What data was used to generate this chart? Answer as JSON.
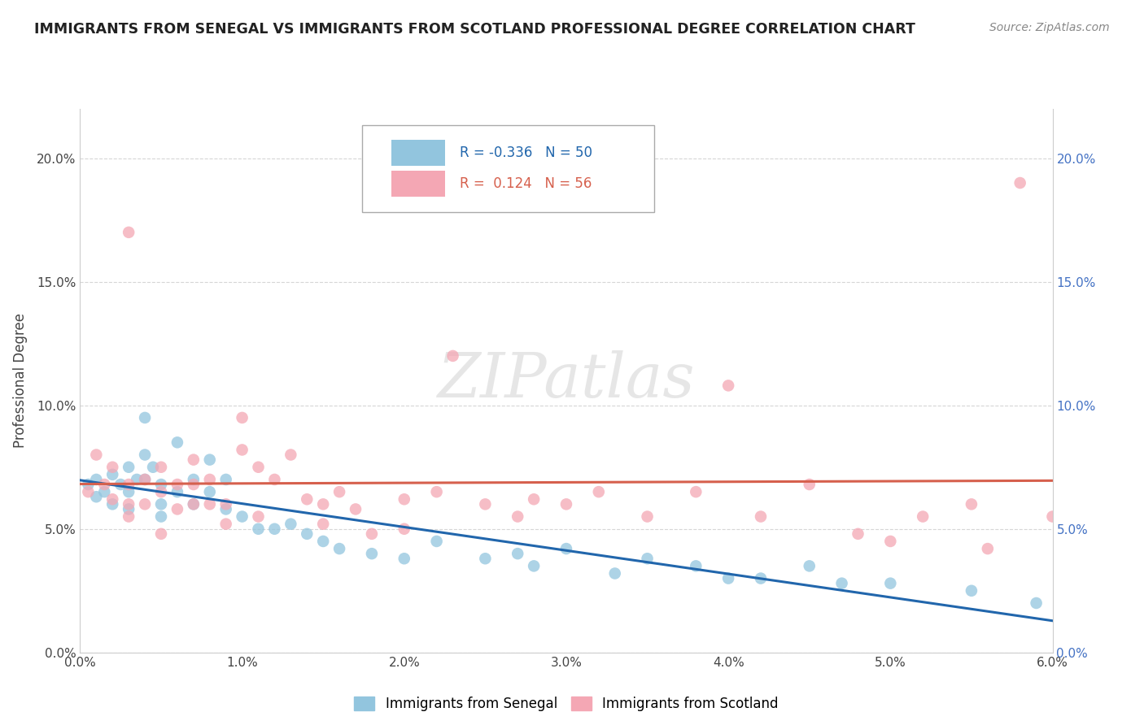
{
  "title": "IMMIGRANTS FROM SENEGAL VS IMMIGRANTS FROM SCOTLAND PROFESSIONAL DEGREE CORRELATION CHART",
  "source": "Source: ZipAtlas.com",
  "ylabel": "Professional Degree",
  "legend_senegal": "Immigrants from Senegal",
  "legend_scotland": "Immigrants from Scotland",
  "r_senegal": "-0.336",
  "n_senegal": "50",
  "r_scotland": "0.124",
  "n_scotland": "56",
  "color_senegal": "#92c5de",
  "color_scotland": "#f4a7b4",
  "line_color_senegal": "#2166ac",
  "line_color_scotland": "#d6604d",
  "xlim": [
    0.0,
    0.06
  ],
  "ylim": [
    0.0,
    0.22
  ],
  "xticks": [
    0.0,
    0.01,
    0.02,
    0.03,
    0.04,
    0.05,
    0.06
  ],
  "yticks": [
    0.0,
    0.05,
    0.1,
    0.15,
    0.2
  ],
  "senegal_x": [
    0.0005,
    0.001,
    0.001,
    0.0015,
    0.002,
    0.002,
    0.0025,
    0.003,
    0.003,
    0.003,
    0.0035,
    0.004,
    0.004,
    0.004,
    0.0045,
    0.005,
    0.005,
    0.005,
    0.006,
    0.006,
    0.007,
    0.007,
    0.008,
    0.008,
    0.009,
    0.009,
    0.01,
    0.011,
    0.012,
    0.013,
    0.014,
    0.015,
    0.016,
    0.018,
    0.02,
    0.022,
    0.025,
    0.027,
    0.028,
    0.03,
    0.033,
    0.035,
    0.038,
    0.04,
    0.042,
    0.045,
    0.047,
    0.05,
    0.055,
    0.059
  ],
  "senegal_y": [
    0.068,
    0.07,
    0.063,
    0.065,
    0.072,
    0.06,
    0.068,
    0.075,
    0.065,
    0.058,
    0.07,
    0.095,
    0.08,
    0.07,
    0.075,
    0.068,
    0.06,
    0.055,
    0.085,
    0.065,
    0.07,
    0.06,
    0.078,
    0.065,
    0.07,
    0.058,
    0.055,
    0.05,
    0.05,
    0.052,
    0.048,
    0.045,
    0.042,
    0.04,
    0.038,
    0.045,
    0.038,
    0.04,
    0.035,
    0.042,
    0.032,
    0.038,
    0.035,
    0.03,
    0.03,
    0.035,
    0.028,
    0.028,
    0.025,
    0.02
  ],
  "scotland_x": [
    0.0005,
    0.001,
    0.0015,
    0.002,
    0.002,
    0.003,
    0.003,
    0.003,
    0.004,
    0.004,
    0.005,
    0.005,
    0.006,
    0.006,
    0.007,
    0.007,
    0.008,
    0.008,
    0.009,
    0.01,
    0.01,
    0.011,
    0.012,
    0.013,
    0.014,
    0.015,
    0.016,
    0.017,
    0.018,
    0.02,
    0.022,
    0.023,
    0.025,
    0.027,
    0.028,
    0.03,
    0.032,
    0.035,
    0.038,
    0.04,
    0.042,
    0.045,
    0.048,
    0.05,
    0.052,
    0.055,
    0.056,
    0.058,
    0.06,
    0.003,
    0.005,
    0.007,
    0.009,
    0.011,
    0.015,
    0.02
  ],
  "scotland_y": [
    0.065,
    0.08,
    0.068,
    0.075,
    0.062,
    0.068,
    0.06,
    0.055,
    0.07,
    0.06,
    0.075,
    0.065,
    0.068,
    0.058,
    0.078,
    0.068,
    0.07,
    0.06,
    0.06,
    0.095,
    0.082,
    0.075,
    0.07,
    0.08,
    0.062,
    0.06,
    0.065,
    0.058,
    0.048,
    0.062,
    0.065,
    0.12,
    0.06,
    0.055,
    0.062,
    0.06,
    0.065,
    0.055,
    0.065,
    0.108,
    0.055,
    0.068,
    0.048,
    0.045,
    0.055,
    0.06,
    0.042,
    0.19,
    0.055,
    0.17,
    0.048,
    0.06,
    0.052,
    0.055,
    0.052,
    0.05
  ]
}
